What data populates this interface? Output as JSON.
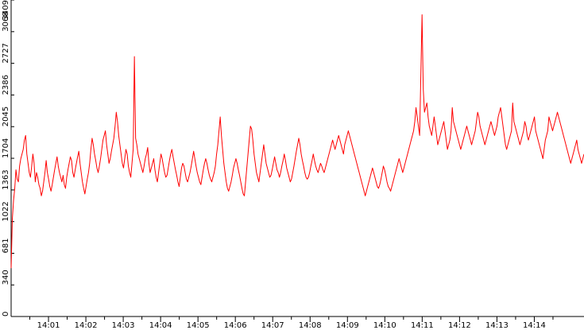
{
  "chart_data": {
    "type": "line",
    "title": "",
    "xlabel": "",
    "ylabel": "",
    "ylim": [
      0,
      3409
    ],
    "xlim_minutes": [
      0,
      15.33
    ],
    "grid": false,
    "legend": "none",
    "y_ticks": [
      0,
      340,
      681,
      1022,
      1363,
      1704,
      2045,
      2386,
      2727,
      3068,
      3409
    ],
    "x_tick_labels": [
      "14:01",
      "14:02",
      "14:03",
      "14:04",
      "14:05",
      "14:06",
      "14:07",
      "14:08",
      "14:09",
      "14:10",
      "14:11",
      "14:12",
      "14:13",
      "14:14"
    ],
    "x_tick_minutes": [
      1,
      2,
      3,
      4,
      5,
      6,
      7,
      8,
      9,
      10,
      11,
      12,
      13,
      14
    ],
    "series": [
      {
        "color": "#ff0000",
        "x_start": "14:00:00",
        "x_end": "14:15:20",
        "values": [
          520,
          1050,
          1250,
          1380,
          1580,
          1480,
          1450,
          1620,
          1700,
          1750,
          1800,
          1900,
          1950,
          1750,
          1650,
          1550,
          1500,
          1620,
          1750,
          1650,
          1450,
          1550,
          1500,
          1420,
          1380,
          1300,
          1350,
          1450,
          1550,
          1680,
          1550,
          1480,
          1400,
          1350,
          1420,
          1500,
          1580,
          1650,
          1720,
          1620,
          1550,
          1500,
          1450,
          1520,
          1420,
          1380,
          1500,
          1580,
          1650,
          1720,
          1680,
          1550,
          1500,
          1580,
          1650,
          1720,
          1780,
          1650,
          1550,
          1450,
          1380,
          1320,
          1400,
          1480,
          1550,
          1650,
          1800,
          1920,
          1850,
          1750,
          1680,
          1600,
          1550,
          1620,
          1700,
          1800,
          1900,
          1950,
          2000,
          1850,
          1750,
          1650,
          1700,
          1780,
          1850,
          1920,
          2050,
          2200,
          2100,
          1950,
          1850,
          1750,
          1650,
          1600,
          1700,
          1800,
          1750,
          1620,
          1550,
          1500,
          1650,
          1800,
          2800,
          1920,
          1850,
          1750,
          1700,
          1650,
          1600,
          1550,
          1620,
          1700,
          1750,
          1820,
          1650,
          1550,
          1600,
          1650,
          1700,
          1580,
          1500,
          1450,
          1550,
          1650,
          1750,
          1700,
          1620,
          1550,
          1500,
          1520,
          1600,
          1680,
          1750,
          1800,
          1720,
          1650,
          1580,
          1520,
          1450,
          1400,
          1500,
          1600,
          1650,
          1620,
          1550,
          1480,
          1450,
          1500,
          1550,
          1620,
          1700,
          1780,
          1700,
          1620,
          1550,
          1500,
          1450,
          1420,
          1500,
          1580,
          1650,
          1700,
          1650,
          1580,
          1520,
          1480,
          1450,
          1500,
          1550,
          1620,
          1750,
          1850,
          2000,
          2150,
          1950,
          1800,
          1650,
          1550,
          1450,
          1380,
          1350,
          1400,
          1450,
          1520,
          1600,
          1650,
          1700,
          1650,
          1580,
          1520,
          1450,
          1380,
          1320,
          1300,
          1450,
          1600,
          1750,
          1900,
          2050,
          2020,
          1900,
          1750,
          1650,
          1550,
          1500,
          1450,
          1550,
          1650,
          1750,
          1850,
          1750,
          1650,
          1600,
          1550,
          1500,
          1520,
          1580,
          1650,
          1720,
          1650,
          1580,
          1550,
          1500,
          1550,
          1620,
          1680,
          1750,
          1680,
          1600,
          1550,
          1500,
          1450,
          1480,
          1550,
          1620,
          1700,
          1780,
          1850,
          1920,
          1850,
          1750,
          1680,
          1620,
          1550,
          1500,
          1480,
          1500,
          1550,
          1620,
          1680,
          1750,
          1680,
          1620,
          1580,
          1550,
          1600,
          1650,
          1620,
          1580,
          1550,
          1600,
          1650,
          1700,
          1750,
          1800,
          1850,
          1900,
          1850,
          1800,
          1850,
          1900,
          1950,
          1900,
          1850,
          1800,
          1750,
          1850,
          1900,
          1950,
          2000,
          1950,
          1900,
          1850,
          1800,
          1750,
          1700,
          1650,
          1600,
          1550,
          1500,
          1450,
          1400,
          1350,
          1300,
          1350,
          1400,
          1450,
          1500,
          1550,
          1600,
          1550,
          1500,
          1450,
          1400,
          1380,
          1420,
          1480,
          1550,
          1620,
          1580,
          1520,
          1450,
          1400,
          1380,
          1350,
          1400,
          1450,
          1500,
          1550,
          1600,
          1650,
          1700,
          1650,
          1600,
          1550,
          1600,
          1650,
          1700,
          1750,
          1800,
          1850,
          1900,
          1950,
          2000,
          2100,
          2250,
          2150,
          2050,
          1950,
          2600,
          3250,
          2450,
          2200,
          2250,
          2300,
          2150,
          2050,
          2000,
          1950,
          2050,
          2150,
          2050,
          1950,
          1850,
          1900,
          1950,
          2000,
          2050,
          2100,
          2000,
          1900,
          1800,
          1850,
          1900,
          2000,
          2250,
          2100,
          2050,
          2000,
          1950,
          1900,
          1850,
          1800,
          1850,
          1900,
          1950,
          2000,
          2050,
          2000,
          1950,
          1900,
          1850,
          1900,
          1950,
          2000,
          2100,
          2200,
          2150,
          2050,
          2000,
          1950,
          1900,
          1850,
          1900,
          1950,
          2000,
          2050,
          2100,
          2050,
          2000,
          1950,
          2000,
          2050,
          2150,
          2200,
          2250,
          2150,
          2050,
          1950,
          1850,
          1800,
          1850,
          1900,
          1950,
          2000,
          2300,
          2100,
          2050,
          2000,
          1950,
          1900,
          1850,
          1900,
          1950,
          2000,
          2100,
          2050,
          1950,
          1900,
          1950,
          2000,
          2050,
          2100,
          2150,
          2000,
          1950,
          1900,
          1850,
          1800,
          1750,
          1700,
          1800,
          1900,
          1950,
          2000,
          2150,
          2100,
          2050,
          2000,
          2050,
          2100,
          2150,
          2200,
          2150,
          2100,
          2050,
          2000,
          1950,
          1900,
          1850,
          1800,
          1750,
          1700,
          1650,
          1700,
          1750,
          1800,
          1850,
          1900,
          1800,
          1750,
          1700,
          1650,
          1700,
          1750
        ]
      }
    ]
  }
}
